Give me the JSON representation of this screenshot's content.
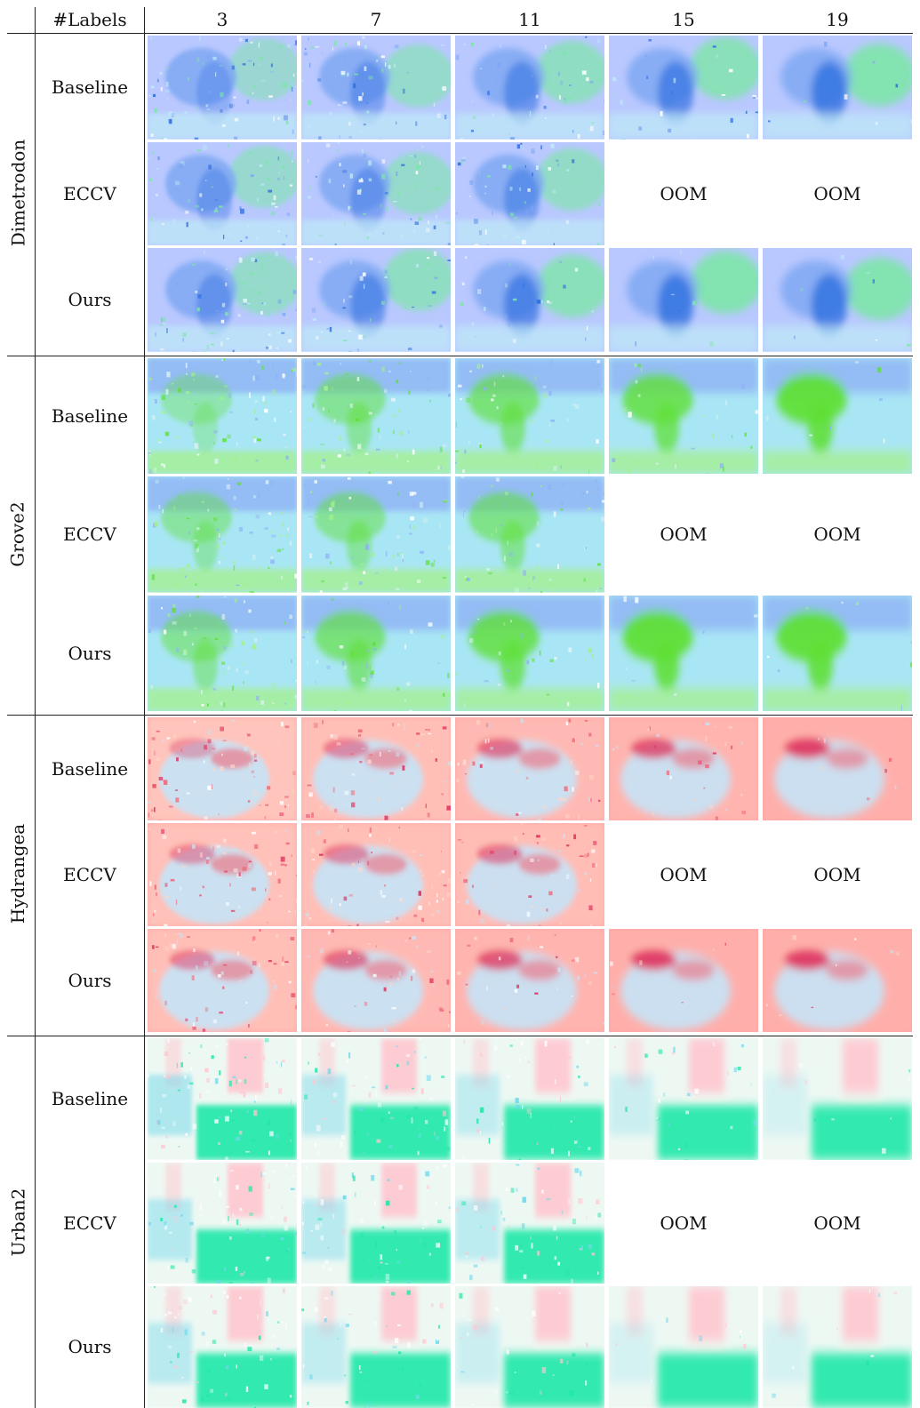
{
  "header": {
    "row_label": "#Labels",
    "columns": [
      "3",
      "7",
      "11",
      "15",
      "19"
    ]
  },
  "oom_label": "OOM",
  "groups": [
    {
      "name": "Dimetrodon",
      "palette": {
        "base": "#b9c8ff",
        "mid": "#7fa8f2",
        "dark": "#2f6fe0",
        "accent": "#7de6a8",
        "light": "#bfeaf7"
      },
      "rows": [
        {
          "method": "Baseline",
          "cells": [
            1,
            1,
            1,
            1,
            1
          ]
        },
        {
          "method": "ECCV",
          "cells": [
            1,
            1,
            1,
            0,
            0
          ]
        },
        {
          "method": "Ours",
          "cells": [
            1,
            1,
            1,
            1,
            1
          ]
        }
      ]
    },
    {
      "name": "Grove2",
      "palette": {
        "base": "#a9e6f5",
        "mid": "#8fb2f5",
        "dark": "#5fe036",
        "accent": "#a4f08c",
        "light": "#d8f1f2"
      },
      "rows": [
        {
          "method": "Baseline",
          "cells": [
            1,
            1,
            1,
            1,
            1
          ]
        },
        {
          "method": "ECCV",
          "cells": [
            1,
            1,
            1,
            0,
            0
          ]
        },
        {
          "method": "Ours",
          "cells": [
            1,
            1,
            1,
            1,
            1
          ]
        }
      ]
    },
    {
      "name": "Hydrangea",
      "palette": {
        "base": "#ffaaa8",
        "mid": "#f06a7a",
        "dark": "#e0305c",
        "accent": "#c8e2f3",
        "light": "#ffd6c8"
      },
      "rows": [
        {
          "method": "Baseline",
          "cells": [
            1,
            1,
            1,
            1,
            1
          ]
        },
        {
          "method": "ECCV",
          "cells": [
            1,
            1,
            1,
            0,
            0
          ]
        },
        {
          "method": "Ours",
          "cells": [
            1,
            1,
            1,
            1,
            1
          ]
        }
      ]
    },
    {
      "name": "Urban2",
      "palette": {
        "base": "#eef8f3",
        "mid": "#ffc7cf",
        "dark": "#1fe8a8",
        "accent": "#6fd8ec",
        "light": "#fbfbff"
      },
      "rows": [
        {
          "method": "Baseline",
          "cells": [
            1,
            1,
            1,
            1,
            1
          ]
        },
        {
          "method": "ECCV",
          "cells": [
            1,
            1,
            1,
            0,
            0
          ]
        },
        {
          "method": "Ours",
          "cells": [
            1,
            1,
            1,
            1,
            1
          ]
        }
      ]
    }
  ]
}
